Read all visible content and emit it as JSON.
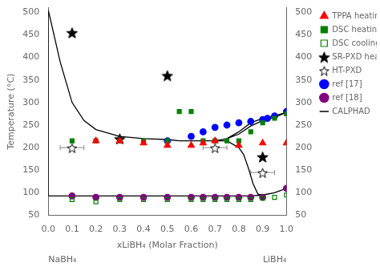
{
  "chart_data": {
    "type": "scatter",
    "xlabel": "xLiBH₄ (Molar Fraction)",
    "ylabel": "Temperature (°C)",
    "xlim": [
      0.0,
      1.0
    ],
    "ylim": [
      50,
      510
    ],
    "xticks": [
      {
        "value": 0.0,
        "label": "0.0"
      },
      0.1,
      0.2,
      0.3,
      0.4,
      0.5,
      0.6,
      0.7,
      0.8,
      0.9,
      {
        "value": 1.0,
        "label": "1.0"
      }
    ],
    "yticks": [
      50,
      100,
      150,
      200,
      250,
      300,
      350,
      400,
      450,
      500
    ],
    "y2lim": [
      50,
      510
    ],
    "y2ticks": [
      50,
      100,
      150,
      200,
      250,
      300,
      350,
      400,
      450,
      500
    ],
    "grid": false,
    "legend": "upper right",
    "annotations": [
      {
        "text": "NaBH₄",
        "x": 0.0
      },
      {
        "text": "LiBH₄",
        "x": 1.0
      }
    ],
    "series": [
      {
        "name": "TPPA heating",
        "color": "red",
        "marker": "triangle",
        "x": [
          0.2,
          0.3,
          0.4,
          0.5,
          0.6,
          0.65,
          0.7,
          0.8,
          0.9,
          1.0
        ],
        "values": [
          215,
          215,
          210,
          205,
          205,
          210,
          215,
          205,
          210,
          210
        ]
      },
      {
        "name": "DSC heating",
        "color": "green",
        "marker": "square",
        "x": [
          0.1,
          0.2,
          0.3,
          0.4,
          0.5,
          0.55,
          0.6,
          0.65,
          0.7,
          0.75,
          0.8,
          0.85,
          0.9,
          0.95,
          1.0
        ],
        "values": [
          215,
          215,
          215,
          215,
          215,
          280,
          280,
          215,
          215,
          215,
          215,
          235,
          255,
          265,
          275
        ]
      },
      {
        "name": "DSC cooling",
        "color": "green",
        "marker": "square-open",
        "x": [
          0.1,
          0.2,
          0.3,
          0.4,
          0.5,
          0.6,
          0.65,
          0.7,
          0.75,
          0.8,
          0.85,
          0.9,
          0.95,
          1.0
        ],
        "values": [
          85,
          80,
          85,
          85,
          85,
          85,
          85,
          85,
          85,
          85,
          85,
          88,
          90,
          95
        ]
      },
      {
        "name": "SR-PXD heating",
        "color": "black",
        "marker": "star",
        "x": [
          0.1,
          0.3,
          0.5,
          0.9
        ],
        "values": [
          455,
          220,
          360,
          180
        ]
      },
      {
        "name": "HT-PXD",
        "color": "black",
        "marker": "star-open",
        "x": [
          0.1,
          0.7,
          0.9
        ],
        "values": [
          200,
          200,
          145
        ],
        "xerr": [
          0.05,
          0.05,
          0.05
        ]
      },
      {
        "name": "ref [17]",
        "color": "blue",
        "marker": "circle",
        "x": [
          0.5,
          0.6,
          0.65,
          0.7,
          0.75,
          0.8,
          0.85,
          0.9,
          0.92,
          0.95,
          1.0
        ],
        "values": [
          215,
          225,
          235,
          245,
          250,
          255,
          258,
          262,
          265,
          270,
          280
        ]
      },
      {
        "name": "ref [18]",
        "color": "purple",
        "marker": "circle",
        "x": [
          0.1,
          0.2,
          0.3,
          0.4,
          0.5,
          0.6,
          0.65,
          0.7,
          0.75,
          0.8,
          0.85,
          0.9,
          1.0
        ],
        "values": [
          93,
          90,
          90,
          90,
          90,
          90,
          90,
          90,
          90,
          90,
          90,
          90,
          110
        ]
      },
      {
        "name": "CALPHAD",
        "color": "black",
        "type": "line",
        "x": [
          0.0,
          0.05,
          0.1,
          0.15,
          0.2,
          0.3,
          0.4,
          0.5,
          0.55,
          0.6,
          0.65,
          0.7,
          0.75,
          0.8,
          0.85,
          0.9,
          0.95,
          1.0,
          null,
          0.65,
          0.7,
          0.75,
          0.8,
          0.85,
          0.9,
          0.95,
          1.0,
          null,
          0.0,
          0.1,
          0.2,
          0.3,
          0.4,
          0.5,
          0.6,
          0.65,
          0.7,
          0.75,
          0.8,
          0.85,
          null,
          0.85,
          0.9,
          0.95,
          1.0,
          null,
          0.0,
          0.0,
          null,
          0.0,
          0.05,
          null,
          0.8,
          0.82,
          0.84,
          0.86,
          0.88,
          0.9,
          null,
          0.65,
          0.7,
          0.75,
          0.8
        ],
        "values": [
          505,
          390,
          300,
          260,
          240,
          225,
          220,
          218,
          215,
          215,
          215,
          215,
          220,
          235,
          255,
          265,
          270,
          278,
          null,
          215,
          215,
          220,
          230,
          248,
          260,
          267,
          278,
          null,
          93,
          93,
          93,
          93,
          93,
          93,
          93,
          93,
          93,
          93,
          93,
          93,
          null,
          93,
          95,
          100,
          110,
          null,
          505,
          93,
          null,
          93,
          93,
          null,
          200,
          185,
          155,
          120,
          97,
          95,
          null,
          215,
          215,
          215,
          200
        ]
      }
    ]
  }
}
